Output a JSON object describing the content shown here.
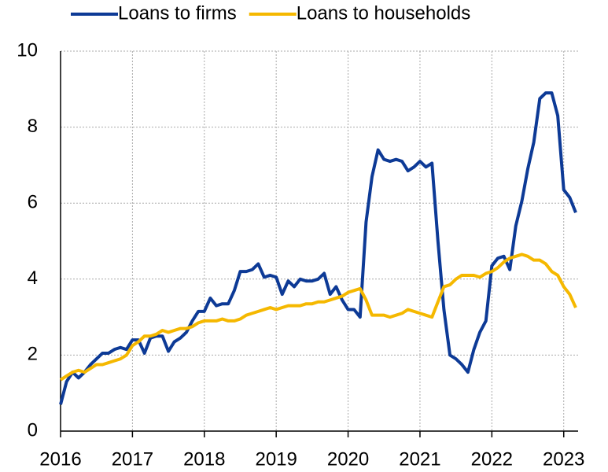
{
  "chart_data": {
    "type": "line",
    "x": [
      2016,
      2016.083,
      2016.167,
      2016.25,
      2016.333,
      2016.417,
      2016.5,
      2016.583,
      2016.667,
      2016.75,
      2016.833,
      2016.917,
      2017,
      2017.083,
      2017.167,
      2017.25,
      2017.333,
      2017.417,
      2017.5,
      2017.583,
      2017.667,
      2017.75,
      2017.833,
      2017.917,
      2018,
      2018.083,
      2018.167,
      2018.25,
      2018.333,
      2018.417,
      2018.5,
      2018.583,
      2018.667,
      2018.75,
      2018.833,
      2018.917,
      2019,
      2019.083,
      2019.167,
      2019.25,
      2019.333,
      2019.417,
      2019.5,
      2019.583,
      2019.667,
      2019.75,
      2019.833,
      2019.917,
      2020,
      2020.083,
      2020.167,
      2020.25,
      2020.333,
      2020.417,
      2020.5,
      2020.583,
      2020.667,
      2020.75,
      2020.833,
      2020.917,
      2021,
      2021.083,
      2021.167,
      2021.25,
      2021.333,
      2021.417,
      2021.5,
      2021.583,
      2021.667,
      2021.75,
      2021.833,
      2021.917,
      2022,
      2022.083,
      2022.167,
      2022.25,
      2022.333,
      2022.417,
      2022.5,
      2022.583,
      2022.667,
      2022.75,
      2022.833,
      2022.917,
      2023,
      2023.083,
      2023.167
    ],
    "series": [
      {
        "name": "Loans to firms",
        "color": "#0d3a96",
        "values": [
          0.7,
          1.3,
          1.55,
          1.4,
          1.55,
          1.75,
          1.9,
          2.05,
          2.05,
          2.15,
          2.2,
          2.15,
          2.4,
          2.4,
          2.05,
          2.45,
          2.5,
          2.5,
          2.1,
          2.35,
          2.45,
          2.6,
          2.9,
          3.15,
          3.15,
          3.5,
          3.3,
          3.35,
          3.35,
          3.7,
          4.2,
          4.2,
          4.25,
          4.4,
          4.05,
          4.1,
          4.05,
          3.6,
          3.95,
          3.8,
          4.0,
          3.95,
          3.95,
          4.0,
          4.15,
          3.6,
          3.8,
          3.45,
          3.2,
          3.2,
          3.0,
          5.5,
          6.7,
          7.4,
          7.15,
          7.1,
          7.15,
          7.1,
          6.85,
          6.95,
          7.1,
          6.95,
          7.05,
          5.0,
          3.2,
          2.0,
          1.9,
          1.75,
          1.55,
          2.15,
          2.6,
          2.9,
          4.35,
          4.55,
          4.6,
          4.25,
          5.4,
          6.05,
          6.9,
          7.6,
          8.75,
          8.9,
          8.9,
          8.3,
          6.35,
          6.15,
          5.75
        ]
      },
      {
        "name": "Loans to households",
        "color": "#f5b800",
        "values": [
          1.35,
          1.45,
          1.55,
          1.6,
          1.55,
          1.65,
          1.75,
          1.75,
          1.8,
          1.85,
          1.9,
          2.0,
          2.25,
          2.35,
          2.5,
          2.5,
          2.55,
          2.65,
          2.6,
          2.65,
          2.7,
          2.7,
          2.75,
          2.85,
          2.9,
          2.9,
          2.9,
          2.95,
          2.9,
          2.9,
          2.95,
          3.05,
          3.1,
          3.15,
          3.2,
          3.25,
          3.2,
          3.25,
          3.3,
          3.3,
          3.3,
          3.35,
          3.35,
          3.4,
          3.4,
          3.45,
          3.5,
          3.55,
          3.65,
          3.7,
          3.75,
          3.45,
          3.05,
          3.05,
          3.05,
          3.0,
          3.05,
          3.1,
          3.2,
          3.15,
          3.1,
          3.05,
          3.0,
          3.4,
          3.8,
          3.85,
          4.0,
          4.1,
          4.1,
          4.1,
          4.05,
          4.15,
          4.2,
          4.3,
          4.45,
          4.55,
          4.6,
          4.65,
          4.6,
          4.5,
          4.5,
          4.4,
          4.2,
          4.1,
          3.8,
          3.6,
          3.25
        ]
      }
    ],
    "xlim": [
      2016,
      2023.2
    ],
    "xticks": [
      2016,
      2017,
      2018,
      2019,
      2020,
      2021,
      2022,
      2023
    ],
    "ylim": [
      0,
      10
    ],
    "yticks": [
      0,
      2,
      4,
      6,
      8,
      10
    ],
    "grid": true,
    "legend": "top"
  }
}
